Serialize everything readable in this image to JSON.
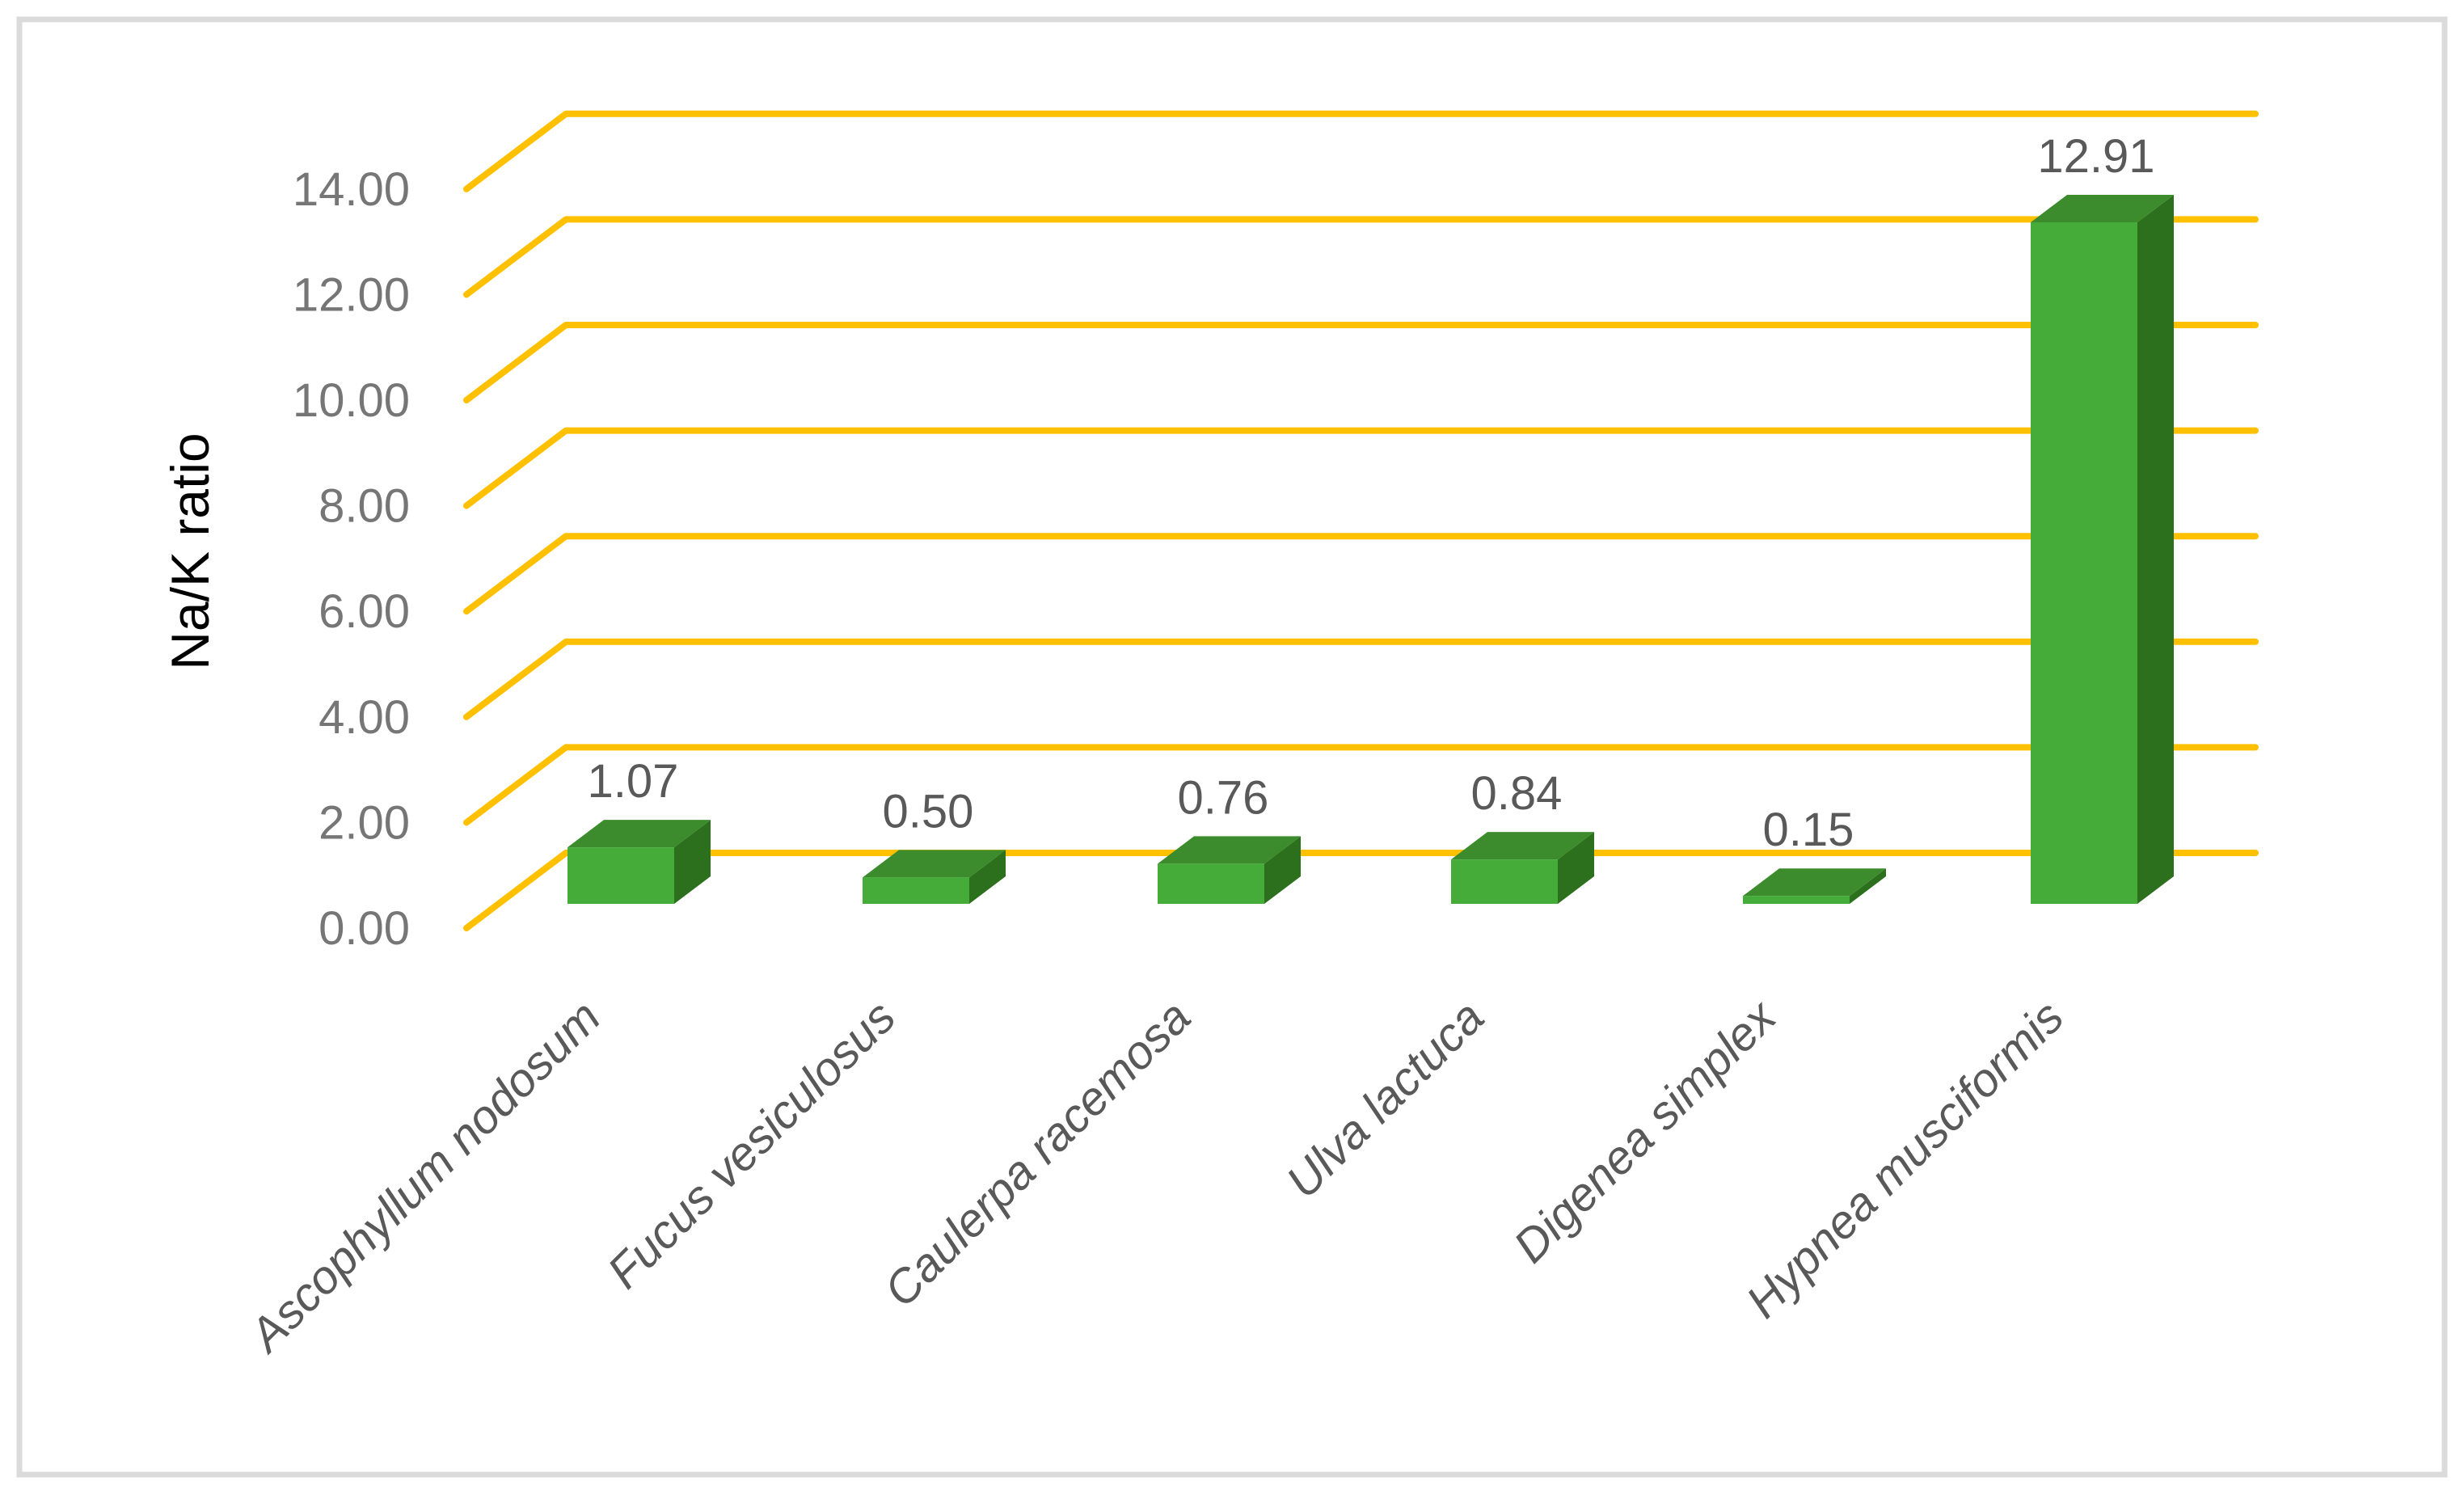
{
  "chart_data": {
    "type": "bar",
    "style": "3d-column",
    "title": "",
    "ylabel": "Na/K ratio",
    "xlabel": "",
    "categories": [
      "Ascophyllum nodosum",
      "Fucus vesiculosus",
      "Caulerpa racemosa",
      "Ulva lactuca",
      "Digenea simplex",
      "Hypnea musciformis"
    ],
    "values": [
      1.07,
      0.5,
      0.76,
      0.84,
      0.15,
      12.91
    ],
    "value_labels": [
      "1.07",
      "0.50",
      "0.76",
      "0.84",
      "0.15",
      "12.91"
    ],
    "yticks": [
      "0.00",
      "2.00",
      "4.00",
      "6.00",
      "8.00",
      "10.00",
      "12.00",
      "14.00"
    ],
    "ylim": [
      0,
      14
    ],
    "ytick_step": 2,
    "grid": "on",
    "legend": "none",
    "colors": {
      "gridline": "#FFC000",
      "bar_front": "#45AC39",
      "bar_top": "#3C8C2E",
      "bar_side": "#2C701D",
      "axis_text": "#767676",
      "data_label_text": "#595959",
      "category_text": "#595959",
      "chart_border": "#DBDBDB",
      "background": "#FFFFFF"
    }
  }
}
